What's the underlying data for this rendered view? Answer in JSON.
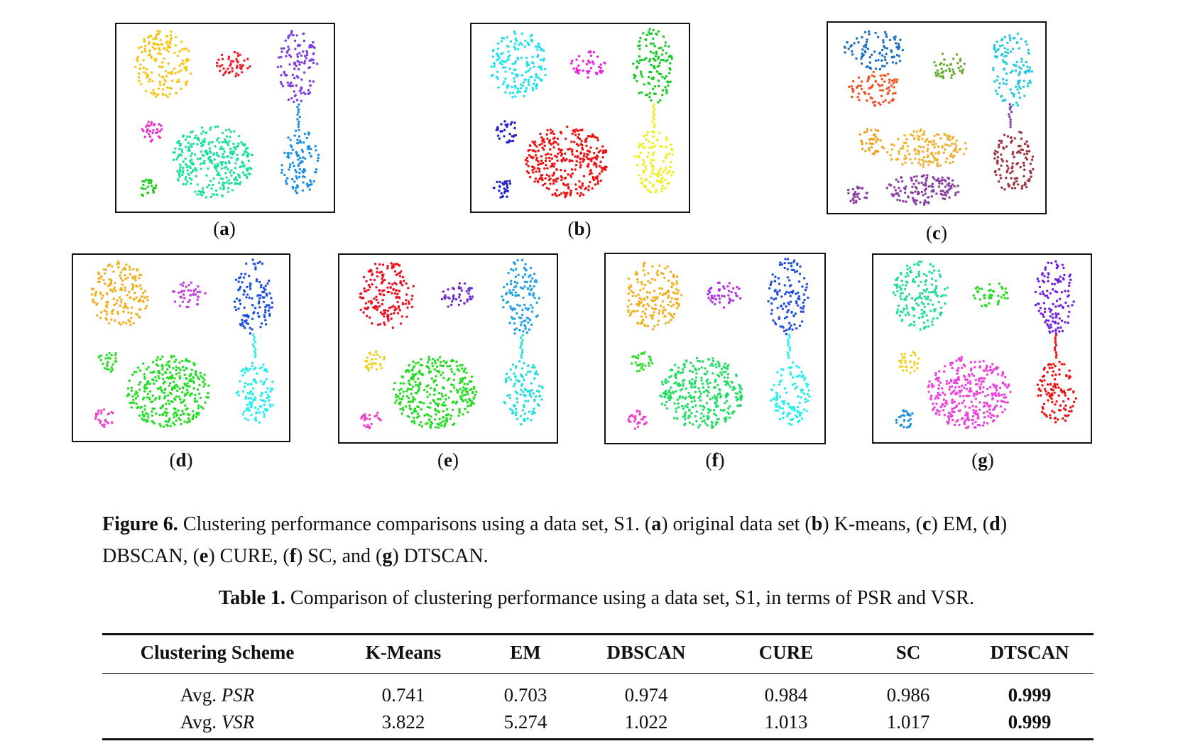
{
  "panels": [
    {
      "id": "a",
      "open": "(",
      "letter": "a",
      "close": ")"
    },
    {
      "id": "b",
      "open": "(",
      "letter": "b",
      "close": ")"
    },
    {
      "id": "c",
      "open": "(",
      "letter": "c",
      "close": ")"
    },
    {
      "id": "d",
      "open": "(",
      "letter": "d",
      "close": ")"
    },
    {
      "id": "e",
      "open": "(",
      "letter": "e",
      "close": ")"
    },
    {
      "id": "f",
      "open": "(",
      "letter": "f",
      "close": ")"
    },
    {
      "id": "g",
      "open": "(",
      "letter": "g",
      "close": ")"
    }
  ],
  "figure_caption": {
    "label": "Figure 6.",
    "t0": " Clustering performance comparisons using a data set, S1. (",
    "a": "a",
    "t1": ") original data set (",
    "b": "b",
    "t2": ") K-means, (",
    "c": "c",
    "t3": ") EM, (",
    "d": "d",
    "t4": ") DBSCAN, (",
    "e": "e",
    "t5": ") CURE, (",
    "f": "f",
    "t6": ") SC, and (",
    "g": "g",
    "t7": ") DTSCAN."
  },
  "table_caption": {
    "label": "Table 1.",
    "text": " Comparison of clustering performance using a data set, S1, in terms of PSR and VSR."
  },
  "table": {
    "headers": [
      "Clustering Scheme",
      "K-Means",
      "EM",
      "DBSCAN",
      "CURE",
      "SC",
      "DTSCAN"
    ],
    "rows": [
      {
        "prefix": "Avg. ",
        "metric": "PSR",
        "values": [
          "0.741",
          "0.703",
          "0.974",
          "0.984",
          "0.986",
          "0.999"
        ]
      },
      {
        "prefix": "Avg. ",
        "metric": "VSR",
        "values": [
          "3.822",
          "5.274",
          "1.022",
          "1.013",
          "1.017",
          "0.999"
        ]
      }
    ]
  },
  "panel_colors": {
    "a": [
      "#f5c518",
      "#ee1c25",
      "#7b3fe0",
      "#e830c8",
      "#1de0a0",
      "#22cc22",
      "#1a8fe6"
    ],
    "b": [
      "#22e0f0",
      "#ee22dd",
      "#11cc22",
      "#2222cc",
      "#ee1111",
      "#2222cc",
      "#eeee11"
    ],
    "c": [
      "#1a6fc0",
      "#f05020",
      "#66aa33",
      "#20c8e0",
      "#f0a020",
      "#f0b030",
      "#8a40a0",
      "#a03040",
      "#8a40a0"
    ],
    "d": [
      "#f0b020",
      "#c040e0",
      "#2050e0",
      "#30dd30",
      "#22dd22",
      "#ee44cc",
      "#22eeee"
    ],
    "e": [
      "#ee1122",
      "#7030d0",
      "#20a0e0",
      "#f0d020",
      "#22dd22",
      "#ee44cc",
      "#22dddd"
    ],
    "f": [
      "#f0b020",
      "#b030e0",
      "#2050e0",
      "#30dd30",
      "#22dd66",
      "#ee44cc",
      "#22eeee"
    ],
    "g": [
      "#20dd99",
      "#22dd22",
      "#7020e0",
      "#f0d020",
      "#ee40dd",
      "#1a8fe6",
      "#ee1111"
    ]
  }
}
